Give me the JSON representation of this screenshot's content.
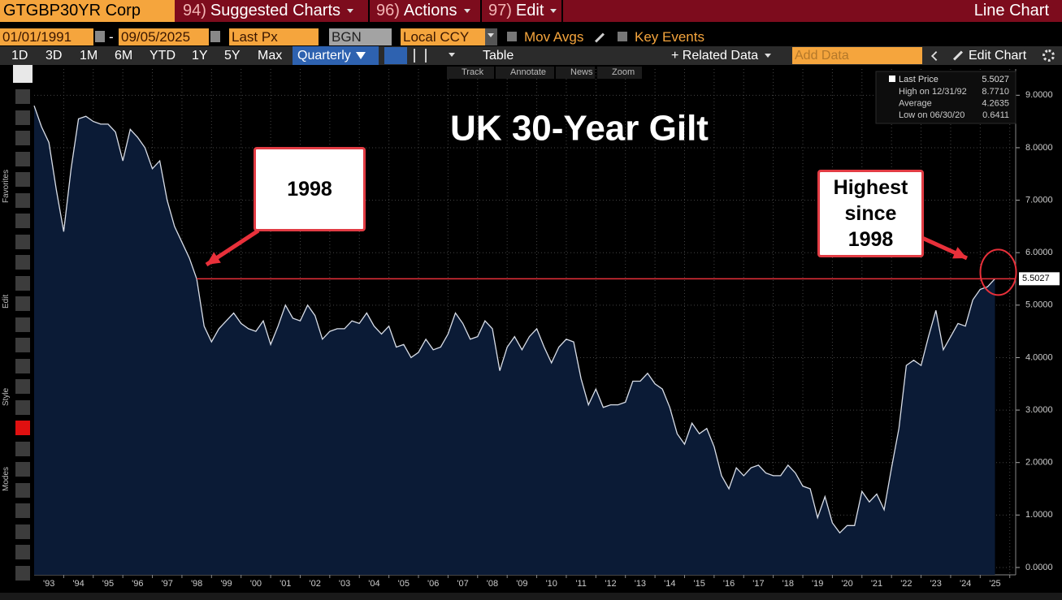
{
  "toolbar": {
    "ticker": "GTGBP30YR Corp",
    "menus": [
      {
        "number": "94)",
        "label": "Suggested Charts"
      },
      {
        "number": "96)",
        "label": "Actions"
      },
      {
        "number": "97)",
        "label": "Edit"
      }
    ],
    "view": "Line Chart"
  },
  "settings": {
    "start_date": "01/01/1991",
    "separator": "-",
    "end_date": "09/05/2025",
    "field": "Last Px",
    "source": "BGN",
    "currency": "Local CCY",
    "options": [
      "Mov Avgs",
      "Key Events"
    ]
  },
  "ranges": [
    "1D",
    "3D",
    "1M",
    "6M",
    "YTD",
    "1Y",
    "5Y",
    "Max"
  ],
  "frequency": "Quarterly",
  "table": "Table",
  "related": "+ Related Data",
  "add_data": "Add Data",
  "edit_chart": "Edit Chart",
  "chart_tools": [
    "Track",
    "Annotate",
    "News",
    "Zoom"
  ],
  "sidebar": [
    "Favorites",
    "Edit",
    "Style",
    "Modes"
  ],
  "chart_data": {
    "type": "area",
    "title": "UK 30-Year Gilt",
    "x": [
      1993,
      1993.25,
      1993.5,
      1993.75,
      1994,
      1994.25,
      1994.5,
      1994.75,
      1995,
      1995.25,
      1995.5,
      1995.75,
      1996,
      1996.25,
      1996.5,
      1996.75,
      1997,
      1997.25,
      1997.5,
      1997.75,
      1998,
      1998.25,
      1998.5,
      1998.75,
      1999,
      1999.25,
      1999.5,
      1999.75,
      2000,
      2000.25,
      2000.5,
      2000.75,
      2001,
      2001.25,
      2001.5,
      2001.75,
      2002,
      2002.25,
      2002.5,
      2002.75,
      2003,
      2003.25,
      2003.5,
      2003.75,
      2004,
      2004.25,
      2004.5,
      2004.75,
      2005,
      2005.25,
      2005.5,
      2005.75,
      2006,
      2006.25,
      2006.5,
      2006.75,
      2007,
      2007.25,
      2007.5,
      2007.75,
      2008,
      2008.25,
      2008.5,
      2008.75,
      2009,
      2009.25,
      2009.5,
      2009.75,
      2010,
      2010.25,
      2010.5,
      2010.75,
      2011,
      2011.25,
      2011.5,
      2011.75,
      2012,
      2012.25,
      2012.5,
      2012.75,
      2013,
      2013.25,
      2013.5,
      2013.75,
      2014,
      2014.25,
      2014.5,
      2014.75,
      2015,
      2015.25,
      2015.5,
      2015.75,
      2016,
      2016.25,
      2016.5,
      2016.75,
      2017,
      2017.25,
      2017.5,
      2017.75,
      2018,
      2018.25,
      2018.5,
      2018.75,
      2019,
      2019.25,
      2019.5,
      2019.75,
      2020,
      2020.25,
      2020.5,
      2020.75,
      2021,
      2021.25,
      2021.5,
      2021.75,
      2022,
      2022.25,
      2022.5,
      2022.75,
      2023,
      2023.25,
      2023.5,
      2023.75,
      2024,
      2024.25,
      2024.5,
      2024.75,
      2025,
      2025.25,
      2025.5
    ],
    "series": [
      {
        "name": "Last Price",
        "color": "#d9dee8",
        "fill": "#0b1b36",
        "values": [
          8.8,
          8.4,
          8.1,
          7.2,
          6.4,
          7.6,
          8.55,
          8.6,
          8.5,
          8.45,
          8.45,
          8.3,
          7.75,
          8.35,
          8.2,
          8.0,
          7.6,
          7.75,
          7.0,
          6.5,
          6.2,
          5.9,
          5.5,
          4.6,
          4.3,
          4.55,
          4.7,
          4.85,
          4.65,
          4.55,
          4.5,
          4.7,
          4.25,
          4.6,
          5.0,
          4.75,
          4.7,
          5.0,
          4.8,
          4.35,
          4.5,
          4.55,
          4.55,
          4.7,
          4.65,
          4.85,
          4.6,
          4.45,
          4.6,
          4.2,
          4.25,
          4.0,
          4.1,
          4.35,
          4.15,
          4.2,
          4.45,
          4.85,
          4.65,
          4.35,
          4.4,
          4.7,
          4.55,
          3.75,
          4.2,
          4.4,
          4.15,
          4.4,
          4.55,
          4.2,
          3.9,
          4.2,
          4.35,
          4.3,
          3.6,
          3.1,
          3.4,
          3.05,
          3.1,
          3.1,
          3.15,
          3.55,
          3.55,
          3.7,
          3.5,
          3.4,
          3.05,
          2.55,
          2.35,
          2.75,
          2.55,
          2.65,
          2.3,
          1.75,
          1.5,
          1.9,
          1.75,
          1.9,
          1.95,
          1.8,
          1.75,
          1.75,
          1.95,
          1.8,
          1.55,
          1.5,
          0.95,
          1.35,
          0.85,
          0.66,
          0.8,
          0.8,
          1.45,
          1.25,
          1.4,
          1.1,
          1.9,
          2.65,
          3.85,
          3.95,
          3.85,
          4.4,
          4.9,
          4.15,
          4.4,
          4.65,
          4.6,
          5.1,
          5.3,
          5.35,
          5.5027
        ]
      }
    ],
    "stats": [
      {
        "label": "High on 12/31/92",
        "value": "8.7710"
      },
      {
        "label": "Average",
        "value": "4.2635"
      },
      {
        "label": "Low on 06/30/20",
        "value": "0.6411"
      }
    ],
    "reference_line": {
      "value": 5.5027,
      "x_start": 1998.5,
      "color": "#e8303a"
    },
    "annotations": [
      {
        "text": "1998"
      },
      {
        "text": "Highest since 1998"
      }
    ],
    "xlim": [
      1993,
      2026.2
    ],
    "ylim": [
      -0.14,
      9.5
    ],
    "xticks": [
      {
        "value": 1993.5,
        "label": "'93"
      },
      {
        "value": 1994.5,
        "label": "'94"
      },
      {
        "value": 1995.5,
        "label": "'95"
      },
      {
        "value": 1996.5,
        "label": "'96"
      },
      {
        "value": 1997.5,
        "label": "'97"
      },
      {
        "value": 1998.5,
        "label": "'98"
      },
      {
        "value": 1999.5,
        "label": "'99"
      },
      {
        "value": 2000.5,
        "label": "'00"
      },
      {
        "value": 2001.5,
        "label": "'01"
      },
      {
        "value": 2002.5,
        "label": "'02"
      },
      {
        "value": 2003.5,
        "label": "'03"
      },
      {
        "value": 2004.5,
        "label": "'04"
      },
      {
        "value": 2005.5,
        "label": "'05"
      },
      {
        "value": 2006.5,
        "label": "'06"
      },
      {
        "value": 2007.5,
        "label": "'07"
      },
      {
        "value": 2008.5,
        "label": "'08"
      },
      {
        "value": 2009.5,
        "label": "'09"
      },
      {
        "value": 2010.5,
        "label": "'10"
      },
      {
        "value": 2011.5,
        "label": "'11"
      },
      {
        "value": 2012.5,
        "label": "'12"
      },
      {
        "value": 2013.5,
        "label": "'13"
      },
      {
        "value": 2014.5,
        "label": "'14"
      },
      {
        "value": 2015.5,
        "label": "'15"
      },
      {
        "value": 2016.5,
        "label": "'16"
      },
      {
        "value": 2017.5,
        "label": "'17"
      },
      {
        "value": 2018.5,
        "label": "'18"
      },
      {
        "value": 2019.5,
        "label": "'19"
      },
      {
        "value": 2020.5,
        "label": "'20"
      },
      {
        "value": 2021.5,
        "label": "'21"
      },
      {
        "value": 2022.5,
        "label": "'22"
      },
      {
        "value": 2023.5,
        "label": "'23"
      },
      {
        "value": 2024.5,
        "label": "'24"
      },
      {
        "value": 2025.5,
        "label": "'25"
      }
    ],
    "yticks": [
      {
        "value": 0,
        "label": "0.0000"
      },
      {
        "value": 1,
        "label": "1.0000"
      },
      {
        "value": 2,
        "label": "2.0000"
      },
      {
        "value": 3,
        "label": "3.0000"
      },
      {
        "value": 4,
        "label": "4.0000"
      },
      {
        "value": 5,
        "label": "5.0000"
      },
      {
        "value": 6,
        "label": "6.0000"
      },
      {
        "value": 7,
        "label": "7.0000"
      },
      {
        "value": 8,
        "label": "8.0000"
      },
      {
        "value": 9,
        "label": "9.0000"
      }
    ],
    "grid": true
  }
}
